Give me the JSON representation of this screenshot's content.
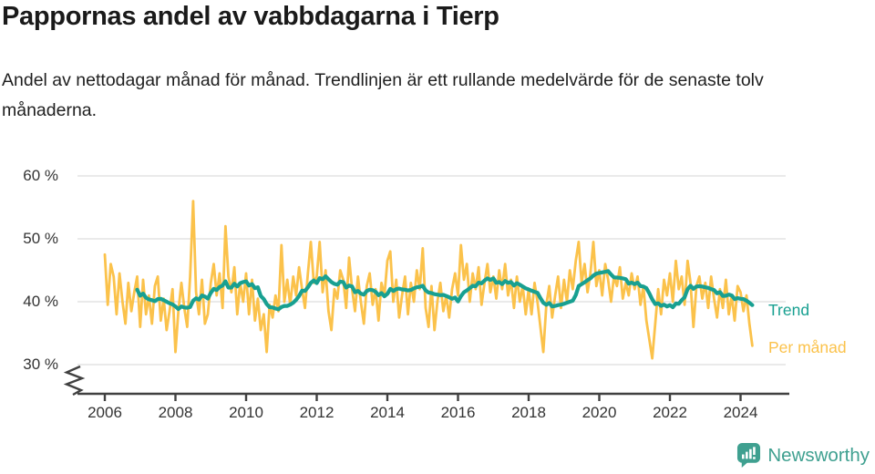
{
  "header": {
    "title": "Pappornas andel av vabbdagarna i Tierp",
    "subtitle": "Andel av nettodagar månad för månad. Trendlinjen är ett rullande medelvärde för de senaste tolv månaderna."
  },
  "footer": {
    "brand": "Newsworthy"
  },
  "colors": {
    "monthly": "#FBC24B",
    "trend": "#18A091",
    "brand": "#3FA090",
    "grid": "#E3E3E3",
    "axis": "#404040",
    "tick_text": "#333333",
    "title_text": "#1A1A1A"
  },
  "chart_data": {
    "type": "line",
    "title": "Pappornas andel av vabbdagarna i Tierp",
    "subtitle": "Andel av nettodagar månad för månad. Trendlinjen är ett rullande medelvärde för de senaste tolv månaderna.",
    "unit": "%",
    "x_interval": "monthly",
    "x_start": "2006-01",
    "x_end": "2024-05",
    "ylim": [
      30,
      60
    ],
    "y_axis_break_below": 30,
    "grid": true,
    "legend_position": "right-of-line-end",
    "yticks": [
      {
        "value": 30,
        "label": "30 %"
      },
      {
        "value": 40,
        "label": "40 %"
      },
      {
        "value": 50,
        "label": "50 %"
      },
      {
        "value": 60,
        "label": "60 %"
      }
    ],
    "xticks": [
      {
        "value": 2006,
        "label": "2006"
      },
      {
        "value": 2008,
        "label": "2008"
      },
      {
        "value": 2010,
        "label": "2010"
      },
      {
        "value": 2012,
        "label": "2012"
      },
      {
        "value": 2014,
        "label": "2014"
      },
      {
        "value": 2016,
        "label": "2016"
      },
      {
        "value": 2018,
        "label": "2018"
      },
      {
        "value": 2020,
        "label": "2020"
      },
      {
        "value": 2022,
        "label": "2022"
      },
      {
        "value": 2024,
        "label": "2024"
      }
    ],
    "series": [
      {
        "name": "Per månad",
        "color": "#FBC24B",
        "values": [
          47.5,
          39.5,
          46.0,
          44.0,
          38.0,
          44.5,
          40.0,
          36.5,
          43.0,
          38.5,
          41.5,
          44.0,
          36.0,
          43.5,
          38.0,
          41.0,
          36.5,
          42.5,
          44.0,
          37.0,
          40.5,
          35.5,
          38.5,
          42.0,
          32.0,
          38.5,
          43.0,
          39.0,
          36.0,
          44.0,
          56.0,
          41.5,
          38.0,
          43.5,
          36.5,
          38.0,
          43.0,
          46.0,
          41.0,
          44.5,
          39.0,
          52.0,
          44.0,
          41.5,
          45.5,
          38.0,
          43.0,
          40.0,
          44.5,
          38.0,
          43.5,
          37.0,
          40.5,
          35.5,
          38.0,
          32.0,
          39.5,
          37.5,
          41.0,
          38.5,
          49.0,
          40.0,
          43.5,
          39.5,
          44.0,
          41.0,
          45.5,
          42.0,
          39.0,
          44.5,
          49.5,
          43.0,
          44.0,
          49.5,
          41.5,
          45.0,
          38.5,
          35.5,
          42.0,
          40.5,
          45.0,
          43.5,
          39.0,
          47.0,
          42.0,
          38.5,
          44.0,
          40.0,
          36.5,
          42.5,
          44.5,
          39.5,
          42.0,
          37.0,
          43.0,
          41.0,
          46.5,
          48.0,
          40.0,
          43.5,
          37.5,
          41.0,
          44.0,
          38.0,
          43.0,
          40.0,
          45.0,
          42.0,
          48.5,
          39.0,
          36.0,
          42.5,
          35.5,
          40.0,
          43.0,
          38.5,
          41.0,
          37.5,
          42.0,
          44.5,
          41.0,
          49.0,
          43.5,
          46.0,
          40.0,
          44.5,
          42.0,
          45.5,
          39.5,
          43.0,
          46.0,
          41.5,
          44.0,
          40.5,
          45.0,
          42.0,
          46.0,
          41.0,
          43.5,
          39.0,
          44.0,
          40.0,
          42.5,
          38.0,
          42.0,
          38.0,
          43.0,
          40.0,
          36.0,
          32.0,
          39.5,
          42.5,
          37.5,
          41.0,
          44.0,
          39.0,
          43.5,
          40.0,
          45.0,
          42.0,
          46.5,
          49.5,
          43.0,
          46.0,
          41.5,
          44.5,
          49.5,
          42.5,
          45.0,
          41.0,
          46.0,
          43.5,
          40.0,
          44.0,
          42.5,
          45.5,
          40.5,
          43.0,
          41.0,
          44.5,
          42.0,
          44.0,
          39.5,
          42.5,
          37.0,
          34.0,
          31.0,
          36.5,
          42.0,
          38.0,
          43.5,
          41.0,
          44.5,
          40.0,
          46.5,
          42.0,
          44.0,
          39.5,
          46.5,
          43.0,
          36.0,
          42.5,
          44.0,
          40.5,
          43.0,
          39.0,
          44.0,
          40.5,
          37.5,
          42.0,
          39.0,
          43.5,
          38.0,
          41.0,
          37.0,
          42.5,
          41.5,
          38.5,
          41.0,
          36.5,
          33.0
        ]
      },
      {
        "name": "Trend",
        "color": "#18A091",
        "derivation": "rolling mean of latest 12 months of 'Per månad'"
      }
    ]
  }
}
